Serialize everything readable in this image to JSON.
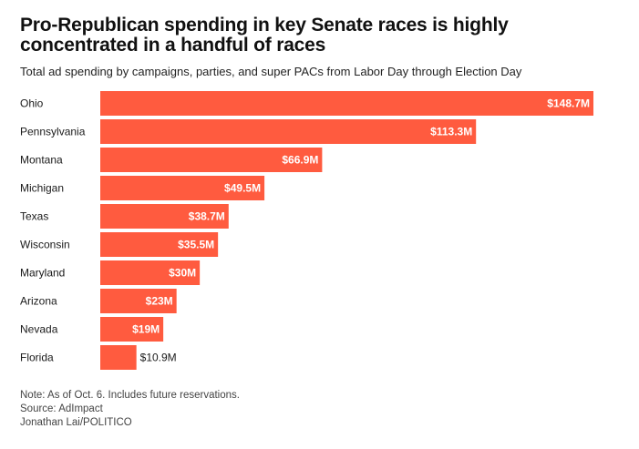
{
  "header": {
    "title": "Pro-Republican spending in key Senate races is highly concentrated in a handful of races",
    "subtitle": "Total ad spending by campaigns, parties, and super PACs from Labor Day through Election Day"
  },
  "footer": {
    "note": "Note: As of Oct. 6. Includes future reservations.",
    "source": "Source: AdImpact",
    "credit": "Jonathan Lai/POLITICO"
  },
  "colors": {
    "bar": "#ff5b3f",
    "label_inside": "#ffffff",
    "label_outside": "#1a1a1a"
  },
  "chart_data": {
    "type": "bar",
    "orientation": "horizontal",
    "categories": [
      "Ohio",
      "Pennsylvania",
      "Montana",
      "Michigan",
      "Texas",
      "Wisconsin",
      "Maryland",
      "Arizona",
      "Nevada",
      "Florida"
    ],
    "values": [
      148.7,
      113.3,
      66.9,
      49.5,
      38.7,
      35.5,
      30,
      23,
      19,
      10.9
    ],
    "labels": [
      "$148.7M",
      "$113.3M",
      "$66.9M",
      "$49.5M",
      "$38.7M",
      "$35.5M",
      "$30M",
      "$23M",
      "$19M",
      "$10.9M"
    ],
    "unit": "millions of dollars",
    "grid": false,
    "legend": "none"
  }
}
